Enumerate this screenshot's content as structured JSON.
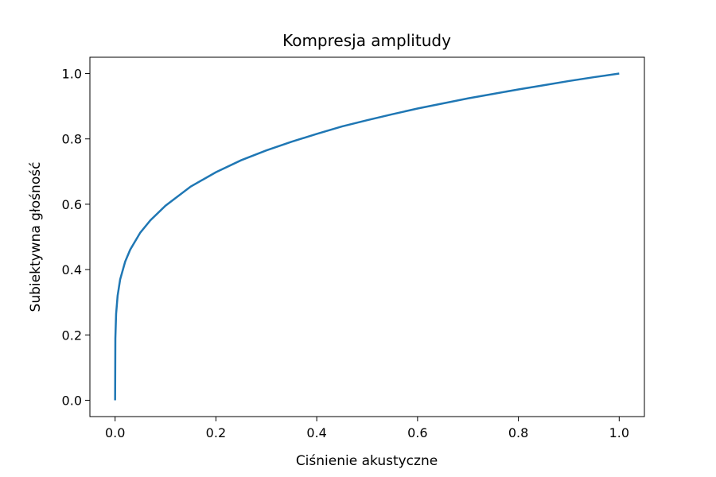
{
  "chart_data": {
    "type": "line",
    "title": "Kompresja amplitudy",
    "xlabel": "Ciśnienie akustyczne",
    "ylabel": "Subiektywna głośność",
    "xlim": [
      -0.05,
      1.05
    ],
    "ylim": [
      -0.05,
      1.05
    ],
    "x_ticks": [
      "0.0",
      "0.2",
      "0.4",
      "0.6",
      "0.8",
      "1.0"
    ],
    "y_ticks": [
      "0.0",
      "0.2",
      "0.4",
      "0.6",
      "0.8",
      "1.0"
    ],
    "grid": false,
    "series": [
      {
        "color": "#1f77b4",
        "x": [
          0,
          0.0005,
          0.002,
          0.005,
          0.01,
          0.02,
          0.03,
          0.05,
          0.07,
          0.1,
          0.15,
          0.2,
          0.25,
          0.3,
          0.35,
          0.4,
          0.45,
          0.5,
          0.55,
          0.6,
          0.65,
          0.7,
          0.75,
          0.8,
          0.85,
          0.9,
          0.95,
          1.0
        ],
        "y": [
          0,
          0.207,
          0.289,
          0.35,
          0.404,
          0.464,
          0.504,
          0.561,
          0.602,
          0.651,
          0.715,
          0.763,
          0.803,
          0.836,
          0.865,
          0.891,
          0.916,
          0.937,
          0.957,
          0.976,
          0.993,
          1.01,
          1.025,
          1.04,
          1.054,
          1.068,
          1.081,
          1.093
        ],
        "note_y_scaled": true
      }
    ]
  }
}
